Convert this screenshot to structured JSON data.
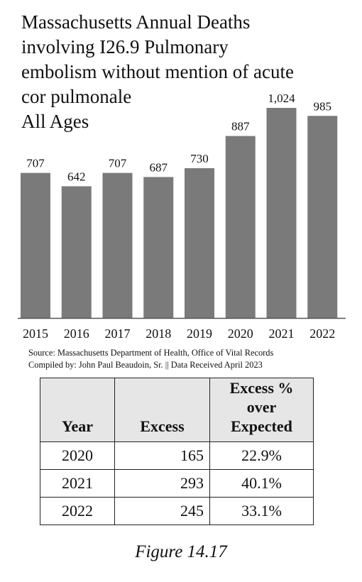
{
  "chart_data": {
    "type": "bar",
    "title_lines": [
      "Massachusetts Annual Deaths",
      "involving I26.9 Pulmonary",
      "embolism without mention of acute",
      "cor pulmonale",
      "All Ages"
    ],
    "categories": [
      "2015",
      "2016",
      "2017",
      "2018",
      "2019",
      "2020",
      "2021",
      "2022"
    ],
    "values": [
      707,
      642,
      707,
      687,
      730,
      887,
      1024,
      985
    ],
    "value_labels": [
      "707",
      "642",
      "707",
      "687",
      "730",
      "887",
      "1,024",
      "985"
    ],
    "xlabel": "",
    "ylabel": "",
    "ylim": [
      0,
      1024
    ],
    "grid": false,
    "legend": "none",
    "bar_color": "#7a7a7a",
    "axis_color": "#555555"
  },
  "source": {
    "line1": "Source:  Massachusetts Department of Health, Office of Vital Records",
    "line2": "Compiled by:  John Paul Beaudoin, Sr. || Data Received April 2023"
  },
  "table": {
    "headers": {
      "year": "Year",
      "excess": "Excess",
      "pct_line1": "Excess % over",
      "pct_line2": "Expected"
    },
    "rows": [
      {
        "year": "2020",
        "excess": "165",
        "pct": "22.9%"
      },
      {
        "year": "2021",
        "excess": "293",
        "pct": "40.1%"
      },
      {
        "year": "2022",
        "excess": "245",
        "pct": "33.1%"
      }
    ]
  },
  "caption": "Figure 14.17"
}
